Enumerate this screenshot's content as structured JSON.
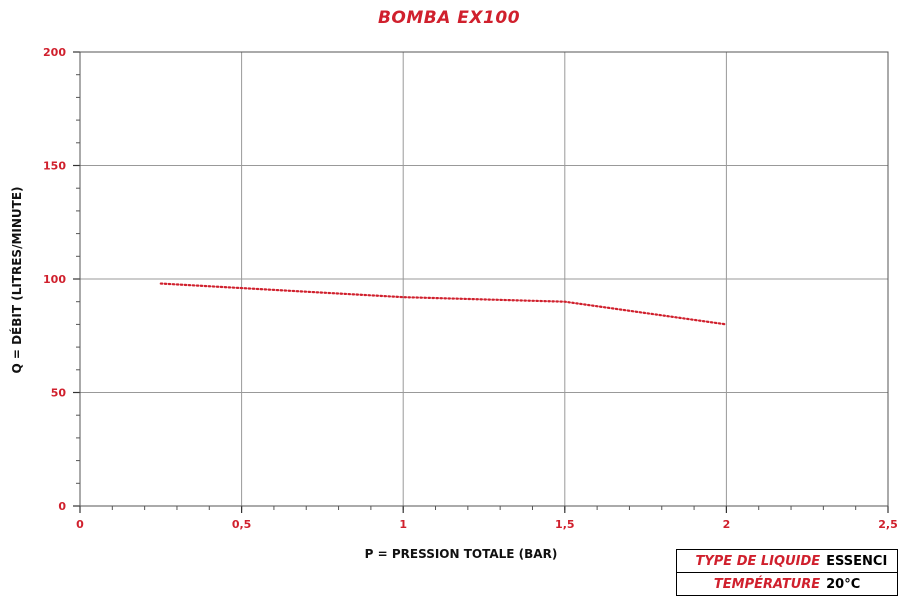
{
  "chart_data": {
    "type": "line",
    "title": "BOMBA EX100",
    "xlabel": "P = PRESSION TOTALE (BAR)",
    "ylabel": "Q = DÉBIT (LITRES/MINUTE)",
    "xlim": [
      0,
      2.5
    ],
    "ylim": [
      0,
      200
    ],
    "x_ticks": [
      "0",
      "0,5",
      "1",
      "1,5",
      "2",
      "2,5"
    ],
    "y_ticks": [
      "0",
      "50",
      "100",
      "150",
      "200"
    ],
    "grid": true,
    "series": [
      {
        "x": [
          0.25,
          0.5,
          1,
          1.5,
          2
        ],
        "y": [
          98,
          96,
          92,
          90,
          80
        ],
        "style": "dotted",
        "color": "#d0202d"
      }
    ]
  },
  "info_table": [
    {
      "key": "TYPE DE LIQUIDE",
      "value": "ESSENCI"
    },
    {
      "key": "TEMPÉRATURE",
      "value": "20°C"
    }
  ],
  "colors": {
    "accent": "#d0202d",
    "grid": "#999999"
  }
}
